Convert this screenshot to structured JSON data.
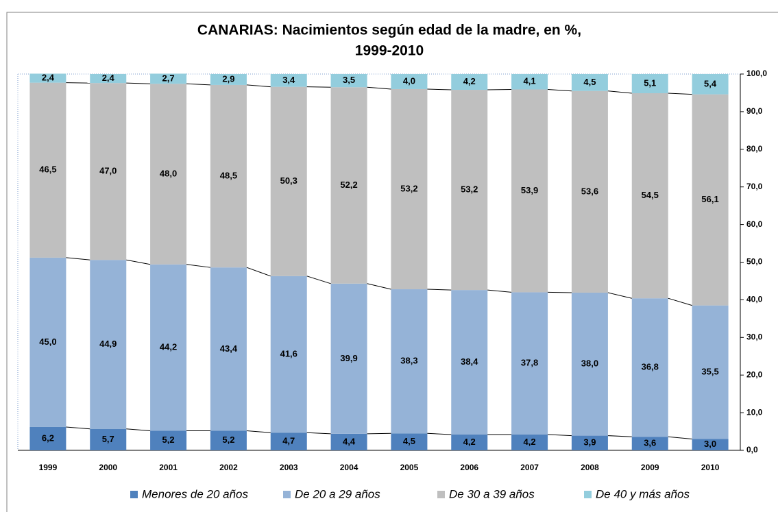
{
  "chart_data": {
    "type": "stacked_bar",
    "title": [
      "CANARIAS: Nacimientos según edad de la madre, en %,",
      "1999-2010"
    ],
    "categories": [
      "1999",
      "2000",
      "2001",
      "2002",
      "2003",
      "2004",
      "2005",
      "2006",
      "2007",
      "2008",
      "2009",
      "2010"
    ],
    "series": [
      {
        "name": "Menores de 20 años",
        "color": "#4f81bd",
        "values": [
          6.2,
          5.7,
          5.2,
          5.2,
          4.7,
          4.4,
          4.5,
          4.2,
          4.2,
          3.9,
          3.6,
          3.0
        ],
        "value_labels": [
          "6,2",
          "5,7",
          "5,2",
          "5,2",
          "4,7",
          "4,4",
          "4,5",
          "4,2",
          "4,2",
          "3,9",
          "3,6",
          "3,0"
        ]
      },
      {
        "name": "De 20 a 29 años",
        "color": "#95b3d7",
        "values": [
          45.0,
          44.9,
          44.2,
          43.4,
          41.6,
          39.9,
          38.3,
          38.4,
          37.8,
          38.0,
          36.8,
          35.5
        ],
        "value_labels": [
          "45,0",
          "44,9",
          "44,2",
          "43,4",
          "41,6",
          "39,9",
          "38,3",
          "38,4",
          "37,8",
          "38,0",
          "36,8",
          "35,5"
        ]
      },
      {
        "name": "De 30 a 39 años",
        "color": "#bfbfbf",
        "values": [
          46.5,
          47.0,
          48.0,
          48.5,
          50.3,
          52.2,
          53.2,
          53.2,
          53.9,
          53.6,
          54.5,
          56.1
        ],
        "value_labels": [
          "46,5",
          "47,0",
          "48,0",
          "48,5",
          "50,3",
          "52,2",
          "53,2",
          "53,2",
          "53,9",
          "53,6",
          "54,5",
          "56,1"
        ]
      },
      {
        "name": "De 40 y más años",
        "color": "#93cddd",
        "values": [
          2.4,
          2.4,
          2.7,
          2.9,
          3.4,
          3.5,
          4.0,
          4.2,
          4.1,
          4.5,
          5.1,
          5.4
        ],
        "value_labels": [
          "2,4",
          "2,4",
          "2,7",
          "2,9",
          "3,4",
          "3,5",
          "4,0",
          "4,2",
          "4,1",
          "4,5",
          "5,1",
          "5,4"
        ]
      }
    ],
    "ylim": [
      0,
      100
    ],
    "yticks": [
      {
        "value": 0,
        "label": "0,0"
      },
      {
        "value": 10,
        "label": "10,0"
      },
      {
        "value": 20,
        "label": "20,0"
      },
      {
        "value": 30,
        "label": "30,0"
      },
      {
        "value": 40,
        "label": "40,0"
      },
      {
        "value": 50,
        "label": "50,0"
      },
      {
        "value": 60,
        "label": "60,0"
      },
      {
        "value": 70,
        "label": "70,0"
      },
      {
        "value": 80,
        "label": "80,0"
      },
      {
        "value": 90,
        "label": "90,0"
      },
      {
        "value": 100,
        "label": "100,0"
      }
    ],
    "y_axis_side": "right",
    "legend": "bottom",
    "series_lines": true
  }
}
